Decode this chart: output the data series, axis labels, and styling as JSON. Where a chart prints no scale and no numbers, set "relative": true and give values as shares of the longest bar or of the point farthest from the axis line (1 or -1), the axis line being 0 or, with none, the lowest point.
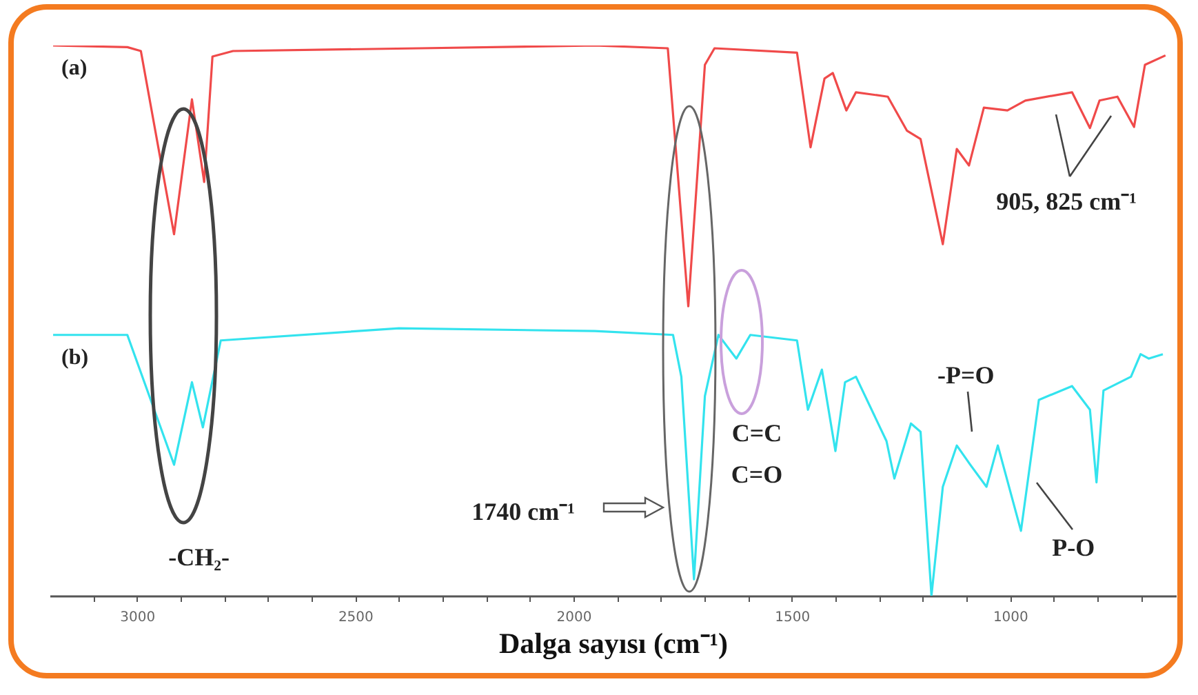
{
  "chart_data": {
    "type": "line",
    "relative": true,
    "xlabel": "Dalga sayısı (cm⁻¹)",
    "xlim": [
      3200,
      620
    ],
    "xticks": [
      {
        "value": 3100,
        "label": null
      },
      3000,
      {
        "value": 2900,
        "label": null
      },
      {
        "value": 2800,
        "label": null
      },
      {
        "value": 2700,
        "label": null
      },
      {
        "value": 2600,
        "label": null
      },
      2500,
      {
        "value": 2400,
        "label": null
      },
      {
        "value": 2300,
        "label": null
      },
      {
        "value": 2200,
        "label": null
      },
      {
        "value": 2100,
        "label": null
      },
      2000,
      {
        "value": 1900,
        "label": null
      },
      {
        "value": 1800,
        "label": null
      },
      {
        "value": 1700,
        "label": null
      },
      {
        "value": 1600,
        "label": null
      },
      1500,
      {
        "value": 1400,
        "label": null
      },
      {
        "value": 1300,
        "label": null
      },
      {
        "value": 1200,
        "label": null
      },
      {
        "value": 1100,
        "label": null
      },
      1000,
      {
        "value": 900,
        "label": null
      },
      {
        "value": 800,
        "label": null
      },
      {
        "value": 700,
        "label": null
      }
    ],
    "grid": false,
    "marker": "none",
    "line_style": "solid",
    "series": [
      {
        "name": "(a)",
        "color": "#f04a4a",
        "x": [
          3192,
          3022,
          2991,
          2915,
          2874,
          2846,
          2827,
          2780,
          2351,
          1951,
          1784,
          1737,
          1699,
          1677,
          1488,
          1457,
          1425,
          1406,
          1375,
          1353,
          1280,
          1236,
          1205,
          1154,
          1122,
          1094,
          1060,
          1006,
          965,
          858,
          817,
          795,
          754,
          716,
          691,
          644
        ],
        "values": [
          1.0,
          0.997,
          0.99,
          0.657,
          0.902,
          0.752,
          0.98,
          0.99,
          0.995,
          1.0,
          0.995,
          0.526,
          0.965,
          0.995,
          0.987,
          0.815,
          0.94,
          0.95,
          0.882,
          0.915,
          0.907,
          0.845,
          0.83,
          0.639,
          0.812,
          0.782,
          0.887,
          0.882,
          0.9,
          0.915,
          0.85,
          0.9,
          0.907,
          0.852,
          0.965,
          0.982
        ]
      },
      {
        "name": "(b)",
        "color": "#33e3ee",
        "x": [
          3192,
          3022,
          2915,
          2874,
          2849,
          2808,
          2400,
          1951,
          1772,
          1753,
          1724,
          1699,
          1668,
          1627,
          1595,
          1488,
          1463,
          1431,
          1400,
          1378,
          1353,
          1283,
          1265,
          1227,
          1205,
          1180,
          1154,
          1122,
          1091,
          1054,
          1028,
          975,
          934,
          858,
          817,
          802,
          786,
          723,
          701,
          682,
          650
        ],
        "values": [
          0.474,
          0.474,
          0.238,
          0.388,
          0.306,
          0.464,
          0.486,
          0.481,
          0.474,
          0.398,
          0.03,
          0.363,
          0.474,
          0.431,
          0.474,
          0.464,
          0.338,
          0.411,
          0.263,
          0.388,
          0.398,
          0.281,
          0.213,
          0.313,
          0.298,
          0.0,
          0.198,
          0.273,
          0.238,
          0.198,
          0.273,
          0.118,
          0.356,
          0.381,
          0.338,
          0.206,
          0.373,
          0.398,
          0.439,
          0.431,
          0.439
        ]
      }
    ],
    "annotations": [
      "-CH₂-",
      "1740 cm⁻¹",
      "C=C",
      "C=O",
      "905, 825 cm⁻¹",
      "-P=O",
      "P-O"
    ]
  }
}
